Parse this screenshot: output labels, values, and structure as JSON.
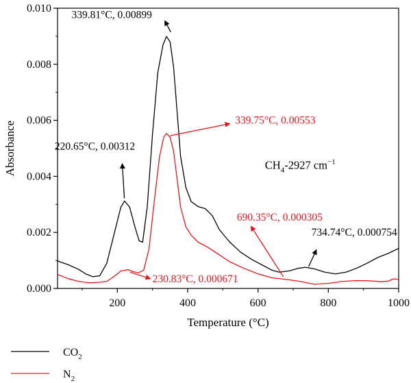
{
  "chart_data": {
    "type": "line",
    "xlabel": "Temperature (°C)",
    "ylabel": "Absorbance",
    "xlim": [
      30,
      1000
    ],
    "ylim": [
      0,
      0.01
    ],
    "x_ticks": [
      200,
      400,
      600,
      800,
      1000
    ],
    "x_tick_labels": [
      "200",
      "400",
      "600",
      "800",
      "1000"
    ],
    "y_ticks": [
      0,
      0.002,
      0.004,
      0.006,
      0.008,
      0.01
    ],
    "y_tick_labels": [
      "0.000",
      "0.002",
      "0.004",
      "0.006",
      "0.008",
      "0.010"
    ],
    "grid": false,
    "legend_position": "bottom-left, below plot",
    "inset_label": {
      "main": "CH",
      "sub": "4",
      "rest": "-2927 cm",
      "sup": "−1"
    },
    "series": [
      {
        "name": "CO2",
        "legend_main": "CO",
        "legend_sub": "2",
        "color": "#000000",
        "points": [
          [
            30,
            0.00098
          ],
          [
            60,
            0.00085
          ],
          [
            90,
            0.00068
          ],
          [
            110,
            0.00052
          ],
          [
            130,
            0.00042
          ],
          [
            150,
            0.00045
          ],
          [
            170,
            0.0009
          ],
          [
            190,
            0.0019
          ],
          [
            210,
            0.0029
          ],
          [
            220.65,
            0.00312
          ],
          [
            235,
            0.0029
          ],
          [
            250,
            0.0022
          ],
          [
            262,
            0.0017
          ],
          [
            272,
            0.00165
          ],
          [
            285,
            0.0029
          ],
          [
            300,
            0.0055
          ],
          [
            315,
            0.0077
          ],
          [
            330,
            0.0087
          ],
          [
            339.81,
            0.00899
          ],
          [
            350,
            0.0088
          ],
          [
            360,
            0.0079
          ],
          [
            370,
            0.0063
          ],
          [
            380,
            0.0047
          ],
          [
            395,
            0.0036
          ],
          [
            410,
            0.0031
          ],
          [
            430,
            0.00292
          ],
          [
            450,
            0.00285
          ],
          [
            470,
            0.0026
          ],
          [
            490,
            0.0021
          ],
          [
            520,
            0.00165
          ],
          [
            550,
            0.0013
          ],
          [
            580,
            0.00105
          ],
          [
            610,
            0.00085
          ],
          [
            640,
            0.00065
          ],
          [
            660,
            0.00058
          ],
          [
            690,
            0.00063
          ],
          [
            715,
            0.00072
          ],
          [
            734.74,
            0.000754
          ],
          [
            760,
            0.0007
          ],
          [
            790,
            0.00058
          ],
          [
            820,
            0.00052
          ],
          [
            850,
            0.00058
          ],
          [
            880,
            0.00072
          ],
          [
            910,
            0.0009
          ],
          [
            940,
            0.0011
          ],
          [
            970,
            0.00125
          ],
          [
            1000,
            0.00143
          ]
        ]
      },
      {
        "name": "N2",
        "legend_main": "N",
        "legend_sub": "2",
        "color": "#e8141b",
        "points": [
          [
            30,
            0.0005
          ],
          [
            60,
            0.00035
          ],
          [
            90,
            0.00025
          ],
          [
            120,
            0.0002
          ],
          [
            150,
            0.00022
          ],
          [
            170,
            0.00025
          ],
          [
            190,
            0.00042
          ],
          [
            210,
            0.00062
          ],
          [
            230.83,
            0.000671
          ],
          [
            245,
            0.0006
          ],
          [
            260,
            0.00056
          ],
          [
            275,
            0.00065
          ],
          [
            290,
            0.0014
          ],
          [
            305,
            0.0031
          ],
          [
            320,
            0.0047
          ],
          [
            332,
            0.0054
          ],
          [
            339.75,
            0.00553
          ],
          [
            350,
            0.0054
          ],
          [
            360,
            0.0049
          ],
          [
            370,
            0.0039
          ],
          [
            380,
            0.0029
          ],
          [
            395,
            0.0022
          ],
          [
            410,
            0.0019
          ],
          [
            430,
            0.00165
          ],
          [
            460,
            0.00145
          ],
          [
            490,
            0.0012
          ],
          [
            520,
            0.00095
          ],
          [
            560,
            0.00072
          ],
          [
            600,
            0.00052
          ],
          [
            640,
            0.00038
          ],
          [
            690.35,
            0.000305
          ],
          [
            720,
            0.00025
          ],
          [
            760,
            0.00015
          ],
          [
            800,
            0.00018
          ],
          [
            840,
            0.00025
          ],
          [
            880,
            0.00028
          ],
          [
            920,
            0.00027
          ],
          [
            950,
            0.00024
          ],
          [
            970,
            0.00026
          ],
          [
            985,
            0.00034
          ],
          [
            1000,
            0.00032
          ]
        ]
      }
    ],
    "annotations": [
      {
        "text": "339.81°C, 0.00899",
        "color": "#000000",
        "anchor": [
          339.81,
          0.00899
        ],
        "text_at": [
          70,
          0.00965
        ],
        "arrow_from": [
          352,
          0.00915
        ],
        "arrow_to": [
          335,
          0.00955
        ]
      },
      {
        "text": "220.65°C, 0.00312",
        "color": "#000000",
        "anchor": [
          220.65,
          0.00312
        ],
        "text_at": [
          22,
          0.00495
        ],
        "arrow_from": [
          220,
          0.00322
        ],
        "arrow_to": [
          214,
          0.00445
        ]
      },
      {
        "text": "339.75°C, 0.00553",
        "color": "#e8141b",
        "anchor": [
          339.75,
          0.00553
        ],
        "text_at": [
          535,
          0.00588
        ],
        "arrow_from": [
          350,
          0.00545
        ],
        "arrow_to": [
          520,
          0.00588
        ]
      },
      {
        "text": "690.35°C, 0.000305",
        "color": "#e8141b",
        "anchor": [
          690.35,
          0.000305
        ],
        "text_at": [
          540,
          0.00242
        ],
        "arrow_from": [
          672,
          0.00042
        ],
        "arrow_to": [
          580,
          0.00222
        ]
      },
      {
        "text": "734.74°C, 0.000754",
        "color": "#000000",
        "anchor": [
          734.74,
          0.000754
        ],
        "text_at": [
          752,
          0.00188
        ],
        "arrow_from": [
          744,
          0.00078
        ],
        "arrow_to": [
          766,
          0.00138
        ]
      },
      {
        "text": "230.83°C, 0.000671",
        "color": "#e8141b",
        "anchor": [
          230.83,
          0.000671
        ],
        "text_at": [
          300,
          0.00022
        ],
        "arrow_from": [
          236,
          0.00058
        ],
        "arrow_to": [
          294,
          0.00035
        ]
      }
    ]
  }
}
